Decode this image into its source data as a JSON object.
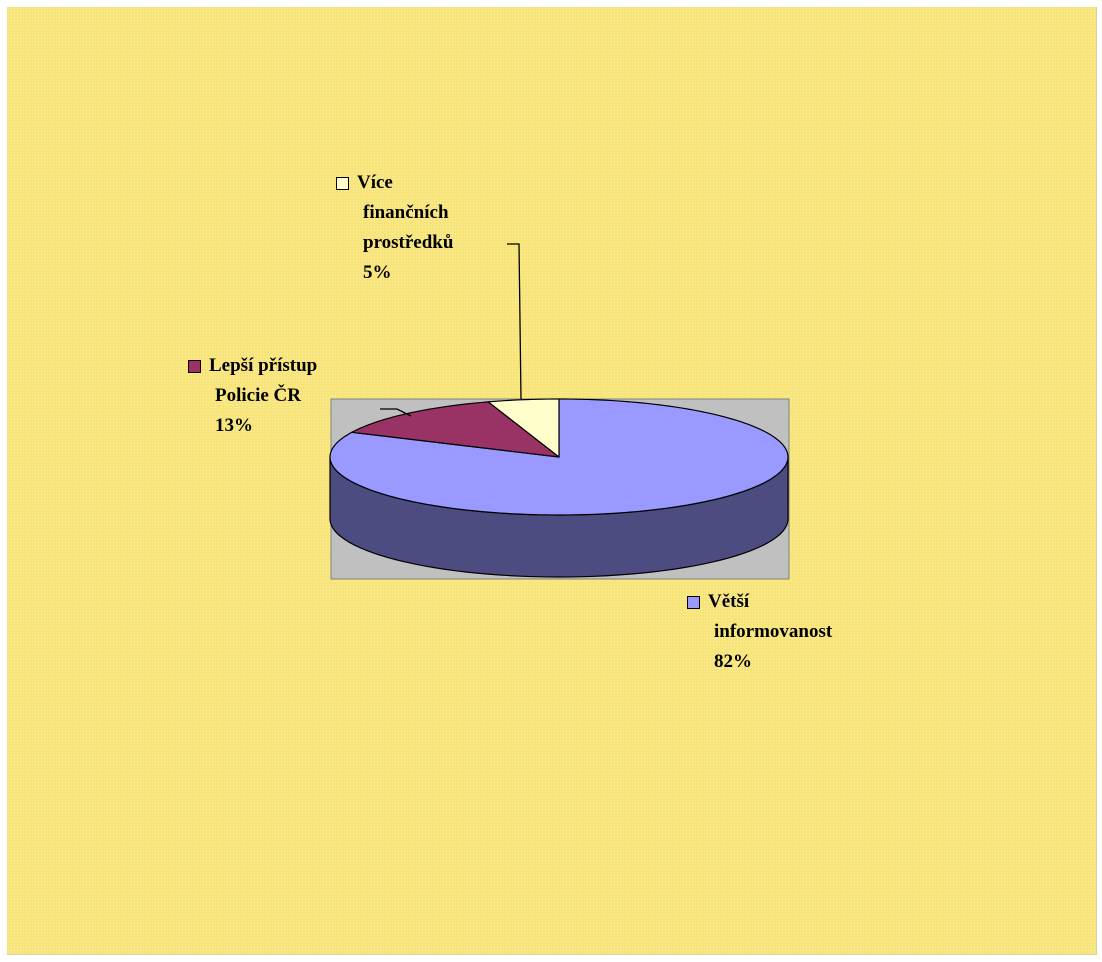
{
  "chart_data": {
    "type": "pie",
    "style": "3d",
    "slices": [
      {
        "label_lines": [
          "Větší",
          "informovanost"
        ],
        "value": 82,
        "value_label": "82%",
        "color": "#9999ff",
        "side_color": "#4c4c80"
      },
      {
        "label_lines": [
          "Lepší přístup",
          "Policie ČR"
        ],
        "value": 13,
        "value_label": "13%",
        "color": "#993366",
        "side_color": "#4d1a33"
      },
      {
        "label_lines": [
          "Více",
          "finančních",
          "prostředků"
        ],
        "value": 5,
        "value_label": "5%",
        "color": "#ffffcc",
        "side_color": "#808066"
      }
    ],
    "plot_background": "#c0c0c0",
    "chart_background": "#f7e57a"
  }
}
